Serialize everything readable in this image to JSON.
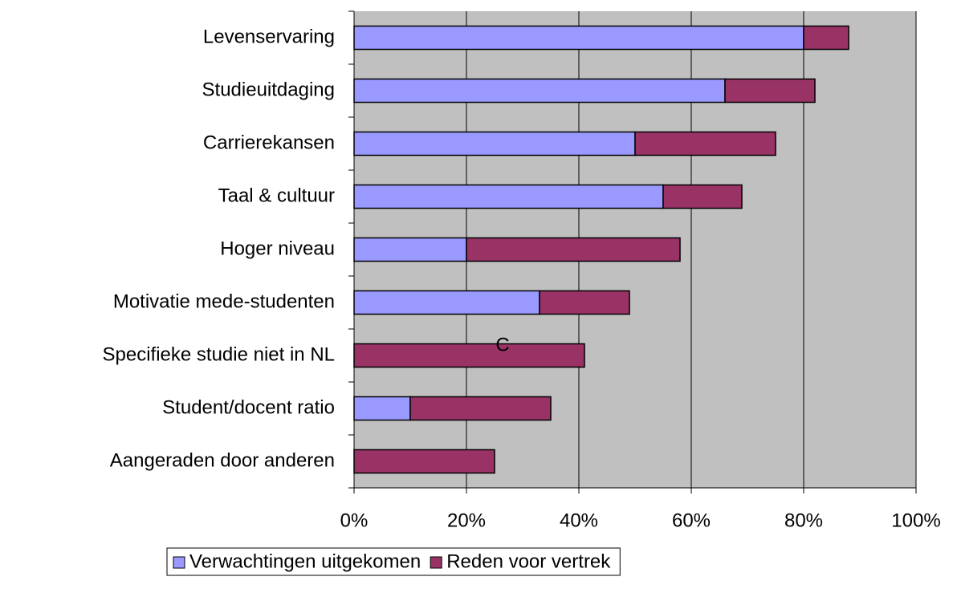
{
  "chart_data": {
    "type": "stacked_barh",
    "categories": [
      "Levenservaring",
      "Studieuitdaging",
      "Carrierekansen",
      "Taal & cultuur",
      "Hoger niveau",
      "Motivatie mede-studenten",
      "Specifieke studie niet in NL",
      "Student/docent ratio",
      "Aangeraden door anderen"
    ],
    "series": [
      {
        "name": "Verwachtingen uitgekomen",
        "color": "#9999ff",
        "values": [
          80,
          66,
          50,
          55,
          20,
          33,
          0,
          10,
          0
        ]
      },
      {
        "name": "Reden voor vertrek",
        "color": "#993366",
        "values": [
          8,
          16,
          25,
          14,
          38,
          16,
          41,
          25,
          25
        ]
      }
    ],
    "xlim": [
      0,
      100
    ],
    "xticks": [
      {
        "value": 0,
        "label": "0%"
      },
      {
        "value": 20,
        "label": "20%"
      },
      {
        "value": 40,
        "label": "40%"
      },
      {
        "value": 60,
        "label": "60%"
      },
      {
        "value": 80,
        "label": "80%"
      },
      {
        "value": 100,
        "label": "100%"
      }
    ],
    "annotation": "C",
    "grid": true,
    "legend": "bottom",
    "background": "#c0c0c0"
  }
}
